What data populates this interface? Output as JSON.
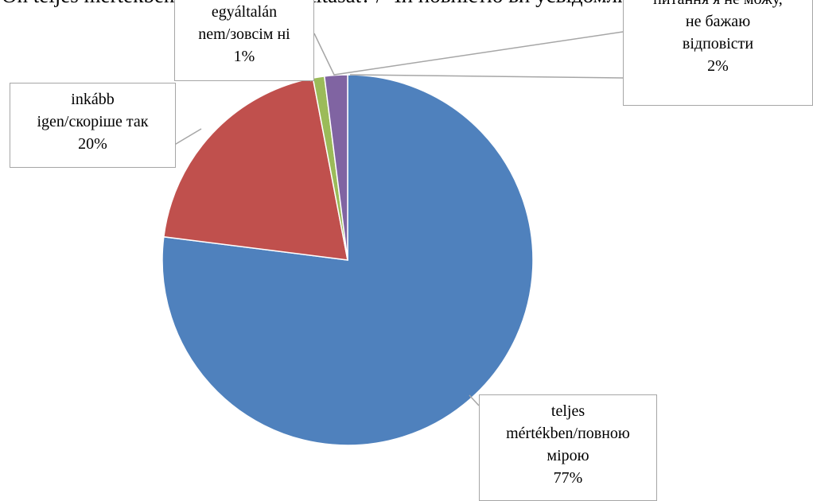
{
  "chart_data": {
    "type": "pie",
    "title": "Ön teljes mértékben vállalja az identitását? / Чи повністю ви усвідомлюєте свою ідентичність?",
    "slices": [
      {
        "name": "teljes mértékben/повною мірою",
        "value": 77,
        "label": "77%",
        "label_lines": [
          "teljes",
          "mértékben/повною",
          "мірою",
          "77%"
        ],
        "color": "#4f81bd"
      },
      {
        "name": "inkább igen/скоріше так",
        "value": 20,
        "label": "20%",
        "label_lines": [
          "inkább",
          "igen/скоріше так",
          "20%"
        ],
        "color": "#c0504d"
      },
      {
        "name": "egyáltalán nem/зовсім ні",
        "value": 1,
        "label": "1%",
        "label_lines": [
          "egyáltalán",
          "nem/зовсім ні",
          "1%"
        ],
        "color": "#9bbb59"
      },
      {
        "name": "nem tudom / на це питання я не можу, не бажаю відповісти",
        "value": 2,
        "label": "2%",
        "label_lines": [
          "питання я не можу,",
          "не бажаю",
          "відповісти",
          "2%"
        ],
        "color": "#8064a2"
      }
    ],
    "start_angle_deg": 0,
    "direction": "clockwise",
    "legend": "none",
    "label_border_color": "#a6a6a6",
    "slice_border_color": "#ffffff"
  }
}
